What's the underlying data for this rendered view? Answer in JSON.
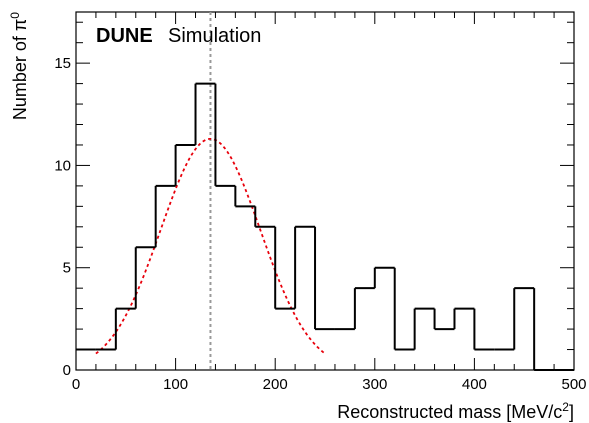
{
  "chart_data": {
    "type": "histogram",
    "banner": {
      "experiment": "DUNE",
      "label": "Simulation"
    },
    "xlabel_main": "Reconstructed mass [MeV/c",
    "xlabel_sup": "2",
    "xlabel_end": "]",
    "ylabel_main": "Number of π",
    "ylabel_sup": "0",
    "xlim": [
      0,
      500
    ],
    "ylim": [
      0,
      17.5
    ],
    "xticks": [
      0,
      100,
      200,
      300,
      400,
      500
    ],
    "xtick_labels": [
      "0",
      "100",
      "200",
      "300",
      "400",
      "500"
    ],
    "yticks": [
      0,
      5,
      10,
      15
    ],
    "ytick_labels": [
      "0",
      "5",
      "10",
      "15"
    ],
    "bin_width": 20,
    "bins": [
      {
        "x0": 0,
        "value": 1
      },
      {
        "x0": 20,
        "value": 1
      },
      {
        "x0": 40,
        "value": 3
      },
      {
        "x0": 60,
        "value": 6
      },
      {
        "x0": 80,
        "value": 9
      },
      {
        "x0": 100,
        "value": 11
      },
      {
        "x0": 120,
        "value": 14
      },
      {
        "x0": 140,
        "value": 9
      },
      {
        "x0": 160,
        "value": 8
      },
      {
        "x0": 180,
        "value": 7
      },
      {
        "x0": 200,
        "value": 3
      },
      {
        "x0": 220,
        "value": 7
      },
      {
        "x0": 240,
        "value": 2
      },
      {
        "x0": 260,
        "value": 2
      },
      {
        "x0": 280,
        "value": 4
      },
      {
        "x0": 300,
        "value": 5
      },
      {
        "x0": 320,
        "value": 1
      },
      {
        "x0": 340,
        "value": 3
      },
      {
        "x0": 360,
        "value": 2
      },
      {
        "x0": 380,
        "value": 3
      },
      {
        "x0": 400,
        "value": 1
      },
      {
        "x0": 420,
        "value": 1
      },
      {
        "x0": 440,
        "value": 4
      },
      {
        "x0": 460,
        "value": 0
      },
      {
        "x0": 480,
        "value": 0
      }
    ],
    "fit": {
      "shape": "gaussian",
      "amplitude": 11.3,
      "mean": 135,
      "sigma": 50,
      "x_range": [
        20,
        250
      ],
      "color": "#e8000b"
    },
    "reference_line": {
      "x": 135,
      "color": "#999999"
    },
    "hist_color": "#000000"
  }
}
